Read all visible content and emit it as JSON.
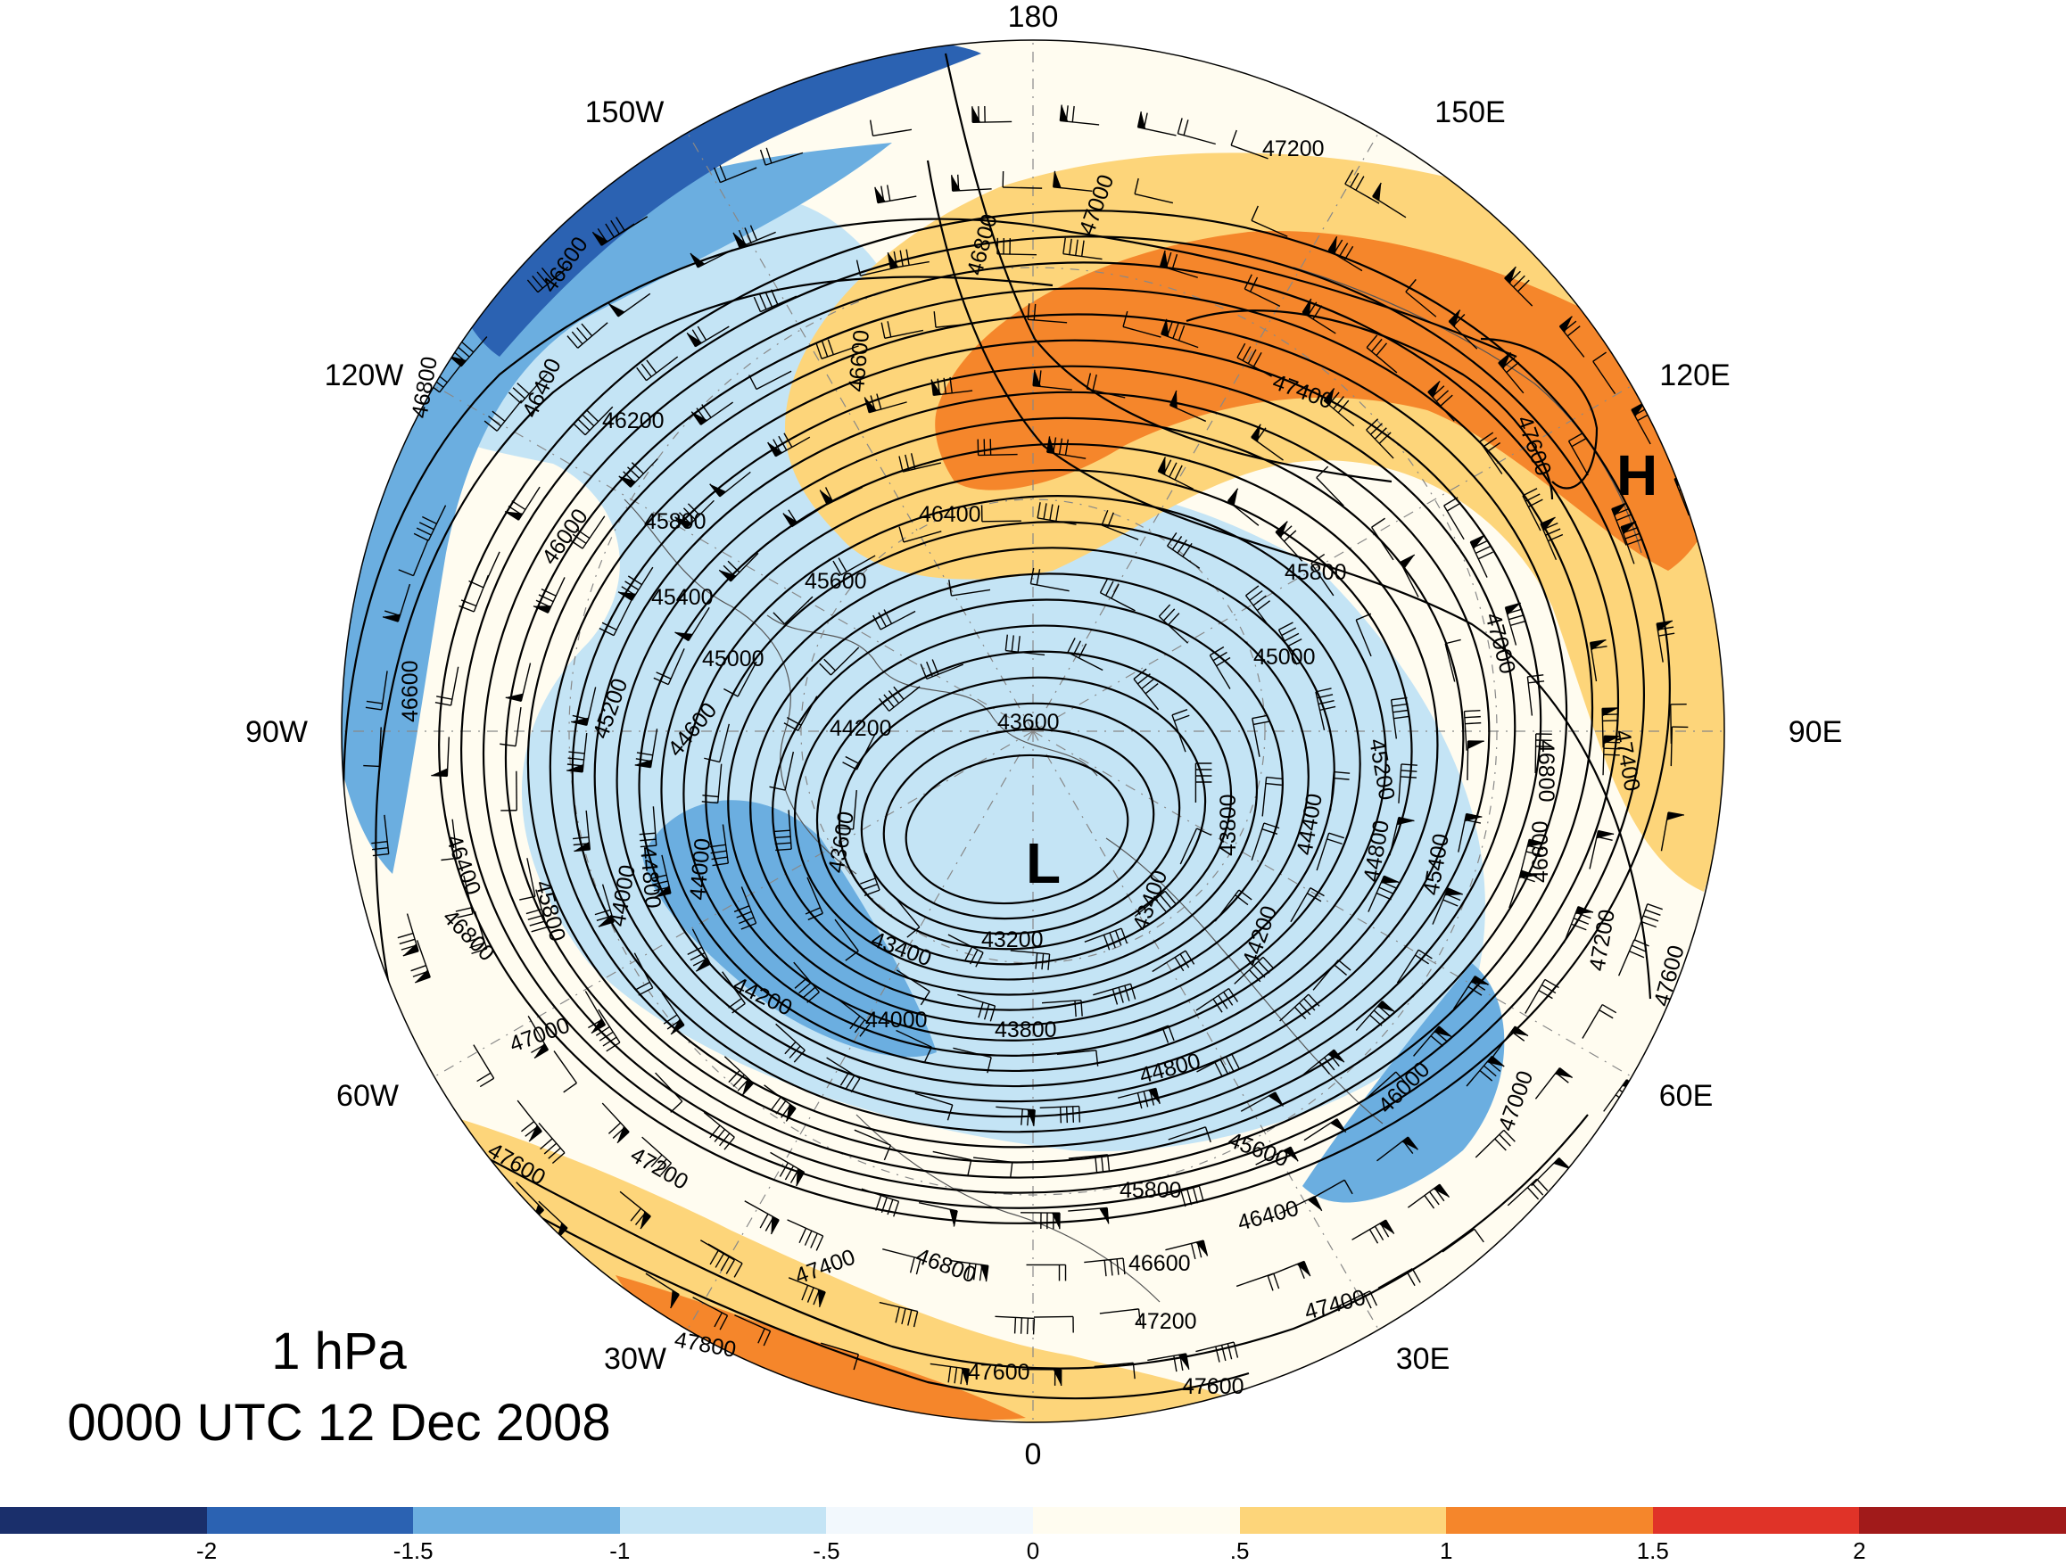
{
  "title": {
    "level": "1 hPa",
    "time": "0000 UTC 12 Dec 2008"
  },
  "longitude_labels": [
    "180",
    "150E",
    "120E",
    "90E",
    "60E",
    "30E",
    "0",
    "30W",
    "60W",
    "90W",
    "120W",
    "150W"
  ],
  "centers": {
    "low": "L",
    "high": "H"
  },
  "contour_labels": [
    "47200",
    "47000",
    "46800",
    "46600",
    "47400",
    "47600",
    "46400",
    "46200",
    "46000",
    "45800",
    "45600",
    "45400",
    "45200",
    "45000",
    "44600",
    "44200",
    "43600",
    "44800",
    "44000",
    "43400",
    "43200",
    "44400",
    "43800",
    "47800"
  ],
  "colorbar": {
    "tick_labels": [
      "-2",
      "-1.5",
      "-1",
      "-.5",
      "0",
      ".5",
      "1",
      "1.5",
      "2"
    ],
    "colors": [
      "#1a2f6b",
      "#2b62b2",
      "#6baee0",
      "#c4e4f5",
      "#f2f8fd",
      "#fffcf0",
      "#fdd57a",
      "#f5862b",
      "#e03328",
      "#a11a1a"
    ]
  },
  "colors": {
    "contour": "#000000",
    "coastline": "#555555",
    "gridline": "#888888"
  }
}
